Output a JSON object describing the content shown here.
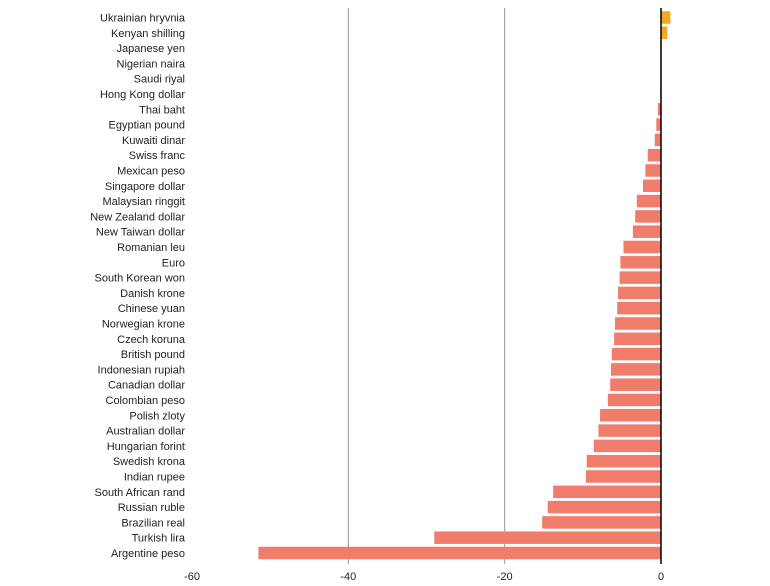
{
  "chart_data": {
    "type": "bar",
    "orientation": "horizontal",
    "grid": true,
    "xlim": [
      -60,
      0
    ],
    "xticks": [
      -60,
      -40,
      -20,
      0
    ],
    "tick_labels": [
      "-60",
      "-40",
      "-20",
      "0"
    ],
    "colors": {
      "negative": "#f07c6c",
      "positive": "#f5a623",
      "grid": "#999999",
      "zero": "#000000"
    },
    "categories": [
      "Ukrainian hryvnia",
      "Kenyan shilling",
      "Japanese yen",
      "Nigerian naira",
      "Saudi riyal",
      "Hong Kong dollar",
      "Thai baht",
      "Egyptian pound",
      "Kuwaiti dinar",
      "Swiss franc",
      "Mexican peso",
      "Singapore dollar",
      "Malaysian ringgit",
      "New Zealand dollar",
      "New Taiwan dollar",
      "Romanian leu",
      "Euro",
      "South Korean won",
      "Danish krone",
      "Chinese yuan",
      "Norwegian krone",
      "Czech koruna",
      "British pound",
      "Indonesian rupiah",
      "Canadian dollar",
      "Colombian peso",
      "Polish zloty",
      "Australian dollar",
      "Hungarian forint",
      "Swedish krona",
      "Indian rupee",
      "South African rand",
      "Russian ruble",
      "Brazilian real",
      "Turkish lira",
      "Argentine peso"
    ],
    "values": [
      1.2,
      0.8,
      0.0,
      0.0,
      0.0,
      -0.1,
      -0.4,
      -0.6,
      -0.8,
      -1.7,
      -2.0,
      -2.3,
      -3.1,
      -3.3,
      -3.6,
      -4.8,
      -5.2,
      -5.3,
      -5.5,
      -5.6,
      -5.9,
      -6.0,
      -6.3,
      -6.4,
      -6.5,
      -6.8,
      -7.8,
      -8.0,
      -8.6,
      -9.5,
      -9.6,
      -13.8,
      -14.5,
      -15.2,
      -29.0,
      -51.5
    ]
  }
}
